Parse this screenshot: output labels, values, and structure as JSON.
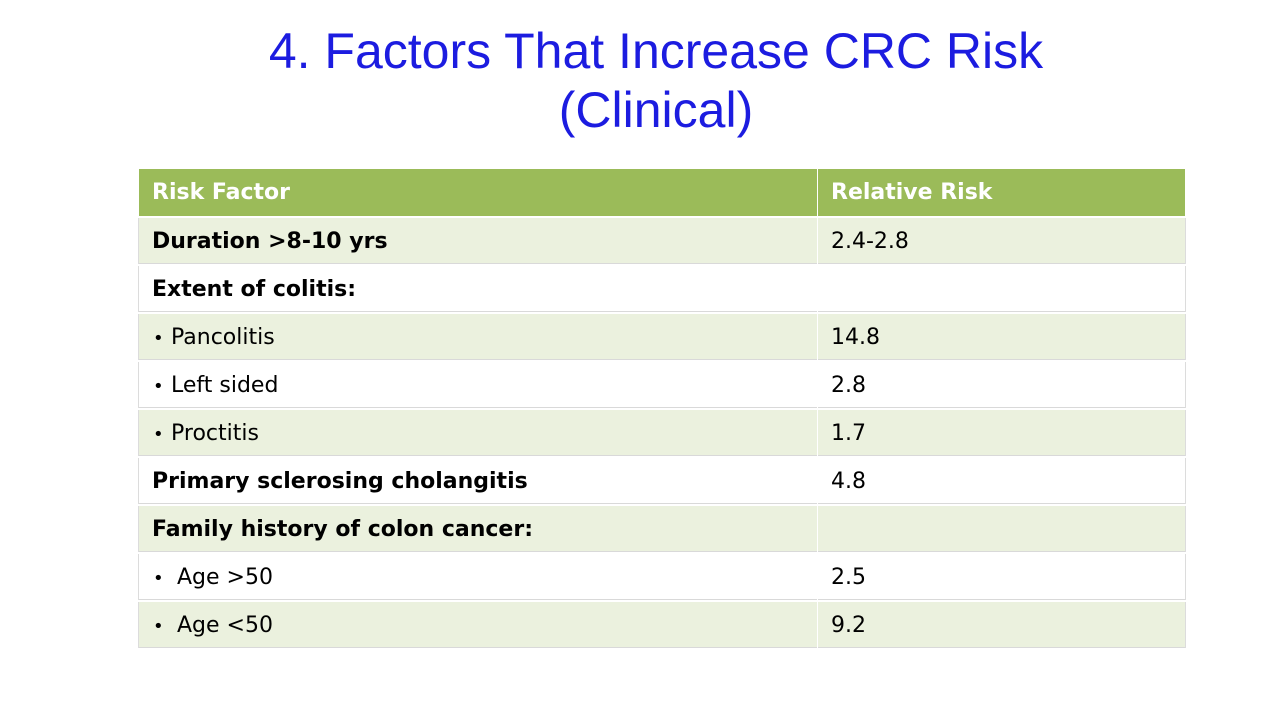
{
  "title": {
    "line1": "4. Factors That Increase CRC Risk",
    "line2": "(Clinical)"
  },
  "table": {
    "headers": [
      "Risk Factor",
      "Relative Risk"
    ],
    "rows": [
      {
        "factor": "Duration >8-10 yrs",
        "risk": "2.4-2.8"
      },
      {
        "factor": "Extent of colitis:",
        "risk": ""
      },
      {
        "bullet": "•",
        "factor": "Pancolitis",
        "risk": "14.8"
      },
      {
        "bullet": "•",
        "factor": "Left sided",
        "risk": "2.8"
      },
      {
        "bullet": "•",
        "factor": "Proctitis",
        "risk": "1.7"
      },
      {
        "factor": "Primary sclerosing cholangitis",
        "risk": "4.8"
      },
      {
        "factor": "Family history of colon cancer:",
        "risk": ""
      },
      {
        "bullet": "•",
        "factor": "Age >50",
        "risk": "2.5"
      },
      {
        "bullet": "•",
        "factor": "Age <50",
        "risk": "9.2"
      }
    ]
  },
  "colors": {
    "title": "#1c1ce0",
    "header_bg": "#9bbb59",
    "header_text": "#ffffff",
    "shaded_row": "#ebf1de",
    "plain_row": "#ffffff"
  }
}
